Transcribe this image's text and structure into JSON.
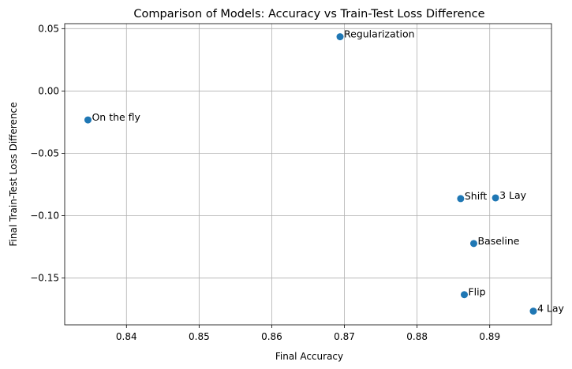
{
  "chart_data": {
    "type": "scatter",
    "title": "Comparison of Models: Accuracy vs Train-Test Loss Difference",
    "xlabel": "Final Accuracy",
    "ylabel": "Final Train-Test Loss Difference",
    "xlim": [
      0.8315,
      0.8985
    ],
    "ylim": [
      -0.1875,
      0.054
    ],
    "xticks": [
      0.84,
      0.85,
      0.86,
      0.87,
      0.88,
      0.89
    ],
    "xtick_labels": [
      "0.84",
      "0.85",
      "0.86",
      "0.87",
      "0.88",
      "0.89"
    ],
    "yticks": [
      0.05,
      0.0,
      -0.05,
      -0.1,
      -0.15
    ],
    "ytick_labels": [
      "0.05",
      "0.00",
      "−0.05",
      "−0.10",
      "−0.15"
    ],
    "grid": true,
    "marker_color": "#1f77b4",
    "points": [
      {
        "label": "On the fly",
        "x": 0.8347,
        "y": -0.0232
      },
      {
        "label": "Regularization",
        "x": 0.8694,
        "y": 0.0435
      },
      {
        "label": "Shift",
        "x": 0.886,
        "y": -0.0863
      },
      {
        "label": "3 Lay",
        "x": 0.8908,
        "y": -0.0857
      },
      {
        "label": "Baseline",
        "x": 0.8878,
        "y": -0.1223
      },
      {
        "label": "Flip",
        "x": 0.8865,
        "y": -0.1633
      },
      {
        "label": "4 Lay",
        "x": 0.896,
        "y": -0.1765
      }
    ]
  }
}
